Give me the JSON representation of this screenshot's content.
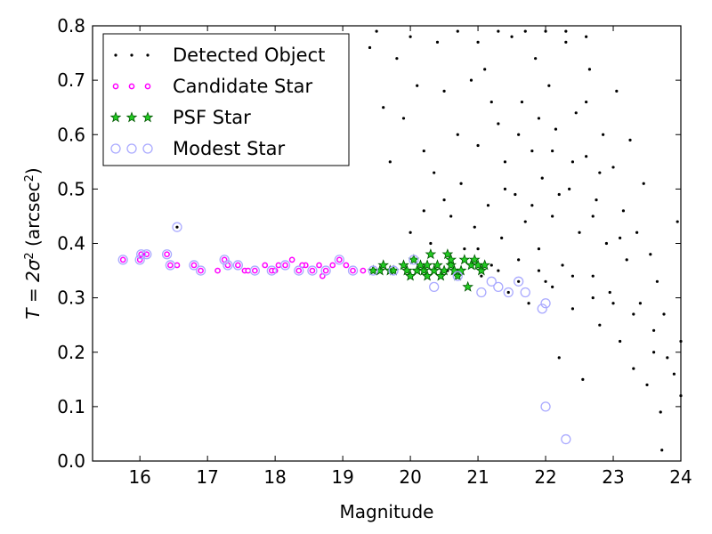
{
  "chart_data": {
    "type": "scatter",
    "xlabel": "Magnitude",
    "ylabel_pre": "T = 2σ",
    "ylabel_sup": "2",
    "ylabel_post": " (arcsec",
    "ylabel_sup2": "2",
    "ylabel_end": ")",
    "xlim": [
      15.3,
      24.0
    ],
    "ylim": [
      0.0,
      0.8
    ],
    "xticks": [
      16,
      17,
      18,
      19,
      20,
      21,
      22,
      23,
      24
    ],
    "yticks": [
      0.0,
      0.1,
      0.2,
      0.3,
      0.4,
      0.5,
      0.6,
      0.7,
      0.8
    ],
    "ytick_labels": [
      "0.0",
      "0.1",
      "0.2",
      "0.3",
      "0.4",
      "0.5",
      "0.6",
      "0.7",
      "0.8"
    ],
    "grid": false,
    "legend_position": "top-left",
    "series": [
      {
        "name": "Detected Object",
        "marker": "dot",
        "color": "#000000",
        "points": [
          [
            16.55,
            0.43
          ],
          [
            19.0,
            0.63
          ],
          [
            19.4,
            0.76
          ],
          [
            19.5,
            0.79
          ],
          [
            19.6,
            0.65
          ],
          [
            19.8,
            0.74
          ],
          [
            19.9,
            0.63
          ],
          [
            20.0,
            0.78
          ],
          [
            20.1,
            0.69
          ],
          [
            20.2,
            0.57
          ],
          [
            20.2,
            0.46
          ],
          [
            20.3,
            0.4
          ],
          [
            20.35,
            0.53
          ],
          [
            20.4,
            0.77
          ],
          [
            20.5,
            0.68
          ],
          [
            20.55,
            0.35
          ],
          [
            20.6,
            0.45
          ],
          [
            20.7,
            0.6
          ],
          [
            20.75,
            0.51
          ],
          [
            20.8,
            0.39
          ],
          [
            20.9,
            0.7
          ],
          [
            20.95,
            0.43
          ],
          [
            21.0,
            0.58
          ],
          [
            21.05,
            0.34
          ],
          [
            21.1,
            0.72
          ],
          [
            21.15,
            0.47
          ],
          [
            21.2,
            0.36
          ],
          [
            21.3,
            0.62
          ],
          [
            21.35,
            0.41
          ],
          [
            21.4,
            0.55
          ],
          [
            21.45,
            0.31
          ],
          [
            21.5,
            0.78
          ],
          [
            21.55,
            0.49
          ],
          [
            21.6,
            0.37
          ],
          [
            21.65,
            0.66
          ],
          [
            21.7,
            0.44
          ],
          [
            21.75,
            0.29
          ],
          [
            21.8,
            0.57
          ],
          [
            21.85,
            0.74
          ],
          [
            21.9,
            0.39
          ],
          [
            21.95,
            0.52
          ],
          [
            22.0,
            0.33
          ],
          [
            22.05,
            0.69
          ],
          [
            22.1,
            0.45
          ],
          [
            22.15,
            0.61
          ],
          [
            22.2,
            0.19
          ],
          [
            22.25,
            0.36
          ],
          [
            22.3,
            0.77
          ],
          [
            22.35,
            0.5
          ],
          [
            22.4,
            0.28
          ],
          [
            22.45,
            0.64
          ],
          [
            22.5,
            0.42
          ],
          [
            22.55,
            0.15
          ],
          [
            22.6,
            0.56
          ],
          [
            22.65,
            0.72
          ],
          [
            22.7,
            0.34
          ],
          [
            22.75,
            0.48
          ],
          [
            22.8,
            0.25
          ],
          [
            22.85,
            0.6
          ],
          [
            22.9,
            0.4
          ],
          [
            22.95,
            0.31
          ],
          [
            23.0,
            0.54
          ],
          [
            23.05,
            0.68
          ],
          [
            23.1,
            0.22
          ],
          [
            23.15,
            0.46
          ],
          [
            23.2,
            0.37
          ],
          [
            23.25,
            0.59
          ],
          [
            23.3,
            0.17
          ],
          [
            23.35,
            0.42
          ],
          [
            23.4,
            0.29
          ],
          [
            23.45,
            0.51
          ],
          [
            23.5,
            0.14
          ],
          [
            23.55,
            0.38
          ],
          [
            23.6,
            0.24
          ],
          [
            23.65,
            0.33
          ],
          [
            23.7,
            0.09
          ],
          [
            23.72,
            0.02
          ],
          [
            23.75,
            0.27
          ],
          [
            23.8,
            0.19
          ],
          [
            23.9,
            0.16
          ],
          [
            23.95,
            0.44
          ],
          [
            24.0,
            0.12
          ],
          [
            24.0,
            0.22
          ],
          [
            21.2,
            0.66
          ],
          [
            21.6,
            0.6
          ],
          [
            21.9,
            0.63
          ],
          [
            22.1,
            0.57
          ],
          [
            22.4,
            0.55
          ],
          [
            22.6,
            0.66
          ],
          [
            22.8,
            0.53
          ],
          [
            21.3,
            0.79
          ],
          [
            21.7,
            0.79
          ],
          [
            22.0,
            0.79
          ],
          [
            22.3,
            0.79
          ],
          [
            22.6,
            0.78
          ],
          [
            20.7,
            0.79
          ],
          [
            21.0,
            0.77
          ],
          [
            19.7,
            0.55
          ],
          [
            20.0,
            0.42
          ],
          [
            20.5,
            0.48
          ],
          [
            21.4,
            0.5
          ],
          [
            21.8,
            0.47
          ],
          [
            22.2,
            0.49
          ],
          [
            22.7,
            0.45
          ],
          [
            23.1,
            0.41
          ],
          [
            21.0,
            0.39
          ],
          [
            21.3,
            0.35
          ],
          [
            21.6,
            0.33
          ],
          [
            21.9,
            0.35
          ],
          [
            22.1,
            0.32
          ],
          [
            22.4,
            0.34
          ],
          [
            22.7,
            0.3
          ],
          [
            23.0,
            0.29
          ],
          [
            23.3,
            0.27
          ],
          [
            23.6,
            0.2
          ]
        ]
      },
      {
        "name": "Candidate Star",
        "marker": "circle-small",
        "color": "#ff00ff",
        "points": [
          [
            15.75,
            0.37
          ],
          [
            16.0,
            0.37
          ],
          [
            16.02,
            0.38
          ],
          [
            16.1,
            0.38
          ],
          [
            16.4,
            0.38
          ],
          [
            16.45,
            0.36
          ],
          [
            16.55,
            0.36
          ],
          [
            16.8,
            0.36
          ],
          [
            16.9,
            0.35
          ],
          [
            17.25,
            0.37
          ],
          [
            17.3,
            0.36
          ],
          [
            17.45,
            0.36
          ],
          [
            17.55,
            0.35
          ],
          [
            17.7,
            0.35
          ],
          [
            17.85,
            0.36
          ],
          [
            17.95,
            0.35
          ],
          [
            18.05,
            0.36
          ],
          [
            18.15,
            0.36
          ],
          [
            18.25,
            0.37
          ],
          [
            18.35,
            0.35
          ],
          [
            18.45,
            0.36
          ],
          [
            18.55,
            0.35
          ],
          [
            18.65,
            0.36
          ],
          [
            18.75,
            0.35
          ],
          [
            18.85,
            0.36
          ],
          [
            18.95,
            0.37
          ],
          [
            19.05,
            0.36
          ],
          [
            19.15,
            0.35
          ],
          [
            19.3,
            0.35
          ],
          [
            17.15,
            0.35
          ],
          [
            17.6,
            0.35
          ],
          [
            18.0,
            0.35
          ],
          [
            18.4,
            0.36
          ],
          [
            18.7,
            0.34
          ]
        ]
      },
      {
        "name": "PSF Star",
        "marker": "star",
        "color": "#00aa00",
        "points": [
          [
            19.45,
            0.35
          ],
          [
            19.55,
            0.35
          ],
          [
            19.6,
            0.36
          ],
          [
            19.7,
            0.35
          ],
          [
            19.75,
            0.35
          ],
          [
            19.9,
            0.36
          ],
          [
            19.95,
            0.35
          ],
          [
            20.05,
            0.37
          ],
          [
            20.1,
            0.35
          ],
          [
            20.15,
            0.36
          ],
          [
            20.2,
            0.35
          ],
          [
            20.25,
            0.34
          ],
          [
            20.3,
            0.38
          ],
          [
            20.35,
            0.35
          ],
          [
            20.4,
            0.36
          ],
          [
            20.45,
            0.34
          ],
          [
            20.5,
            0.35
          ],
          [
            20.55,
            0.38
          ],
          [
            20.6,
            0.36
          ],
          [
            20.65,
            0.35
          ],
          [
            20.7,
            0.34
          ],
          [
            20.75,
            0.35
          ],
          [
            20.8,
            0.37
          ],
          [
            20.85,
            0.32
          ],
          [
            20.9,
            0.36
          ],
          [
            20.95,
            0.37
          ],
          [
            21.0,
            0.36
          ],
          [
            21.05,
            0.35
          ],
          [
            21.1,
            0.36
          ],
          [
            20.0,
            0.34
          ],
          [
            20.25,
            0.36
          ],
          [
            20.6,
            0.37
          ]
        ]
      },
      {
        "name": "Modest Star",
        "marker": "circle-open",
        "color": "#aaaaff",
        "points": [
          [
            15.75,
            0.37
          ],
          [
            16.0,
            0.37
          ],
          [
            16.02,
            0.38
          ],
          [
            16.1,
            0.38
          ],
          [
            16.4,
            0.38
          ],
          [
            16.45,
            0.36
          ],
          [
            16.55,
            0.43
          ],
          [
            16.8,
            0.36
          ],
          [
            16.9,
            0.35
          ],
          [
            17.25,
            0.37
          ],
          [
            17.3,
            0.36
          ],
          [
            17.45,
            0.36
          ],
          [
            17.7,
            0.35
          ],
          [
            17.95,
            0.35
          ],
          [
            18.15,
            0.36
          ],
          [
            18.35,
            0.35
          ],
          [
            18.55,
            0.35
          ],
          [
            18.75,
            0.35
          ],
          [
            18.95,
            0.37
          ],
          [
            19.15,
            0.35
          ],
          [
            19.45,
            0.35
          ],
          [
            19.75,
            0.35
          ],
          [
            20.05,
            0.37
          ],
          [
            20.35,
            0.32
          ],
          [
            20.7,
            0.34
          ],
          [
            21.05,
            0.31
          ],
          [
            21.3,
            0.32
          ],
          [
            21.45,
            0.31
          ],
          [
            21.6,
            0.33
          ],
          [
            21.7,
            0.31
          ],
          [
            21.95,
            0.28
          ],
          [
            22.0,
            0.29
          ],
          [
            22.0,
            0.1
          ],
          [
            22.3,
            0.04
          ],
          [
            21.2,
            0.33
          ]
        ]
      }
    ]
  }
}
